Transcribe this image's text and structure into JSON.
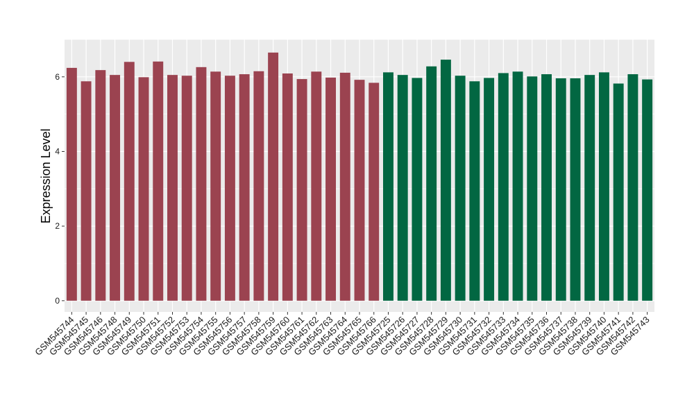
{
  "chart_data": {
    "type": "bar",
    "ylabel": "Expression Level",
    "xlabel": "",
    "ylim": [
      -0.3,
      7.0
    ],
    "yticks": [
      0,
      2,
      4,
      6
    ],
    "grid": true,
    "panel_color": "#ebebeb",
    "grid_color": "#ffffff",
    "group_colors": [
      "#9b4350",
      "#026742"
    ],
    "categories": [
      "GSM545744",
      "GSM545745",
      "GSM545746",
      "GSM545748",
      "GSM545749",
      "GSM545750",
      "GSM545751",
      "GSM545752",
      "GSM545753",
      "GSM545754",
      "GSM545755",
      "GSM545756",
      "GSM545757",
      "GSM545758",
      "GSM545759",
      "GSM545760",
      "GSM545761",
      "GSM545762",
      "GSM545763",
      "GSM545764",
      "GSM545765",
      "GSM545766",
      "GSM545725",
      "GSM545726",
      "GSM545727",
      "GSM545728",
      "GSM545729",
      "GSM545730",
      "GSM545731",
      "GSM545732",
      "GSM545733",
      "GSM545734",
      "GSM545735",
      "GSM545736",
      "GSM545737",
      "GSM545738",
      "GSM545739",
      "GSM545740",
      "GSM545741",
      "GSM545742",
      "GSM545743"
    ],
    "values": [
      6.24,
      5.88,
      6.18,
      6.05,
      6.4,
      5.99,
      6.41,
      6.05,
      6.03,
      6.26,
      6.14,
      6.03,
      6.07,
      6.15,
      6.65,
      6.09,
      5.94,
      6.14,
      5.98,
      6.11,
      5.92,
      5.84,
      6.12,
      6.05,
      5.97,
      6.28,
      6.46,
      6.03,
      5.88,
      5.97,
      6.1,
      6.14,
      6.01,
      6.07,
      5.96,
      5.96,
      6.05,
      6.12,
      5.82,
      6.07,
      5.93
    ],
    "groups": [
      0,
      0,
      0,
      0,
      0,
      0,
      0,
      0,
      0,
      0,
      0,
      0,
      0,
      0,
      0,
      0,
      0,
      0,
      0,
      0,
      0,
      0,
      1,
      1,
      1,
      1,
      1,
      1,
      1,
      1,
      1,
      1,
      1,
      1,
      1,
      1,
      1,
      1,
      1,
      1,
      1
    ]
  }
}
